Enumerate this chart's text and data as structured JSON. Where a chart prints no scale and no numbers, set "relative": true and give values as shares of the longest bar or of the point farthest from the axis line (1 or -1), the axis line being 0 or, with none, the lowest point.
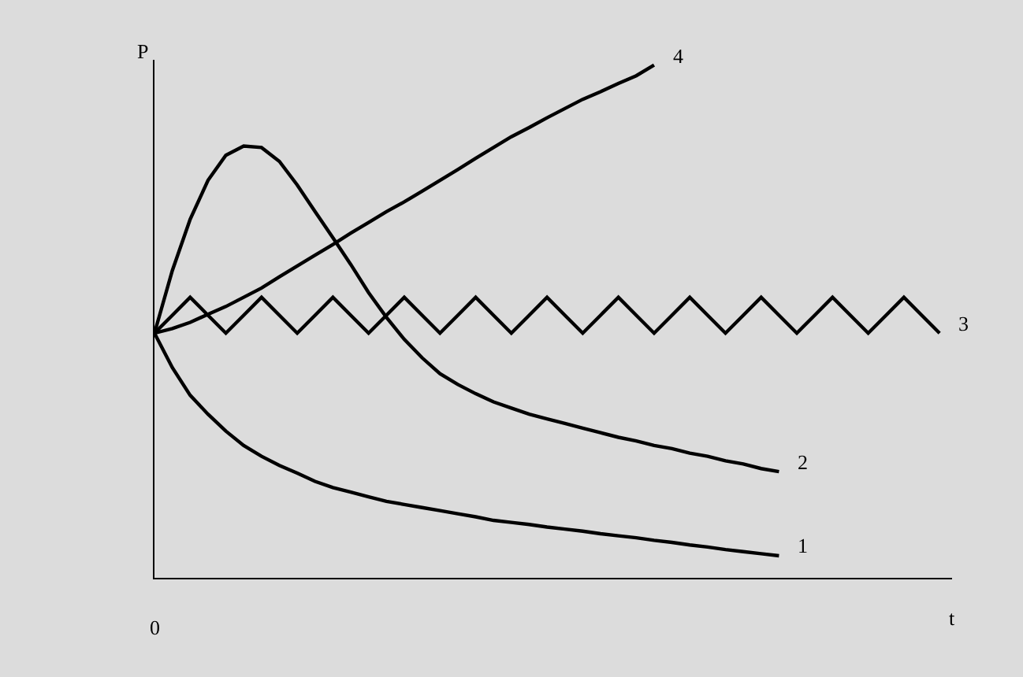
{
  "chart_data": {
    "type": "line",
    "relative": true,
    "xlabel": "t",
    "ylabel": "P",
    "annotations": [
      "0"
    ],
    "legend": false,
    "marker": "none",
    "line_style": "solid",
    "categories": [
      null,
      null,
      null,
      null,
      null,
      null,
      null,
      null,
      null,
      null,
      null,
      null,
      null,
      null,
      null,
      null,
      null,
      null,
      null,
      null,
      null,
      null,
      null,
      null,
      null,
      null,
      null,
      null,
      null,
      null,
      null,
      null,
      null,
      null,
      null,
      null,
      null,
      null,
      null,
      null,
      null,
      null,
      null,
      null,
      null
    ],
    "series": [
      {
        "name": "1",
        "color": "#000000",
        "values": [
          0.477,
          0.41,
          0.356,
          0.319,
          0.286,
          0.258,
          0.237,
          0.219,
          0.204,
          0.188,
          0.176,
          0.167,
          0.158,
          0.149,
          0.143,
          0.137,
          0.131,
          0.125,
          0.119,
          0.112,
          0.108,
          0.104,
          0.099,
          0.095,
          0.091,
          0.086,
          0.082,
          0.078,
          0.073,
          0.069,
          0.064,
          0.06,
          0.055,
          0.051,
          0.047,
          0.043,
          null,
          null,
          null,
          null,
          null,
          null,
          null,
          null,
          null
        ]
      },
      {
        "name": "2",
        "color": "#000000",
        "values": [
          0.477,
          0.599,
          0.699,
          0.775,
          0.824,
          0.842,
          0.839,
          0.812,
          0.766,
          0.714,
          0.663,
          0.611,
          0.556,
          0.508,
          0.465,
          0.429,
          0.398,
          0.377,
          0.359,
          0.343,
          0.331,
          0.319,
          0.31,
          0.301,
          0.292,
          0.283,
          0.274,
          0.267,
          0.258,
          0.252,
          0.243,
          0.237,
          0.228,
          0.222,
          0.213,
          0.207,
          null,
          null,
          null,
          null,
          null,
          null,
          null,
          null,
          null
        ]
      },
      {
        "name": "3",
        "color": "#000000",
        "values": [
          0.477,
          0.512,
          0.547,
          0.512,
          0.477,
          0.512,
          0.547,
          0.512,
          0.477,
          0.512,
          0.547,
          0.512,
          0.477,
          0.512,
          0.547,
          0.512,
          0.477,
          0.512,
          0.547,
          0.512,
          0.477,
          0.512,
          0.547,
          0.512,
          0.477,
          0.512,
          0.547,
          0.512,
          0.477,
          0.512,
          0.547,
          0.512,
          0.477,
          0.512,
          0.547,
          0.512,
          0.477,
          0.512,
          0.547,
          0.512,
          0.477,
          0.512,
          0.547,
          0.512,
          0.477
        ]
      },
      {
        "name": "4",
        "color": "#000000",
        "values": [
          0.477,
          0.486,
          0.498,
          0.514,
          0.529,
          0.547,
          0.565,
          0.587,
          0.608,
          0.629,
          0.65,
          0.672,
          0.693,
          0.714,
          0.733,
          0.754,
          0.775,
          0.796,
          0.818,
          0.839,
          0.86,
          0.878,
          0.897,
          0.915,
          0.933,
          0.948,
          0.964,
          0.979,
          1.0,
          null,
          null,
          null,
          null,
          null,
          null,
          null,
          null,
          null,
          null,
          null,
          null,
          null,
          null,
          null,
          null
        ]
      }
    ]
  }
}
